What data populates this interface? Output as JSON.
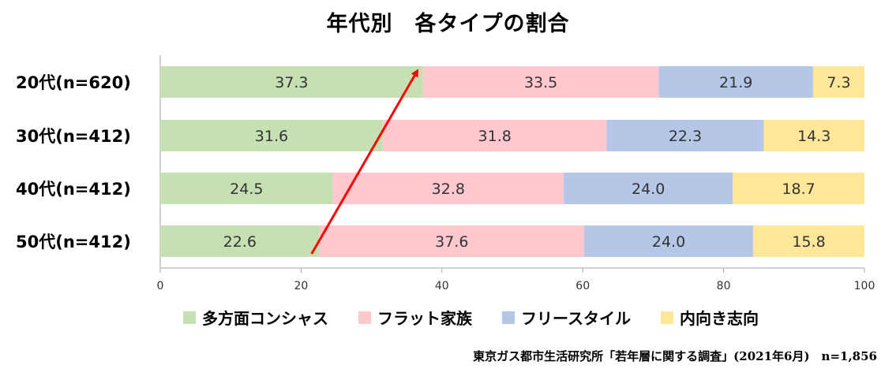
{
  "chart_data": {
    "type": "bar",
    "orientation": "horizontal",
    "stacked": true,
    "title": "年代別　各タイプの割合",
    "categories": [
      "20代(n=620)",
      "30代(n=412)",
      "40代(n=412)",
      "50代(n=412)"
    ],
    "series": [
      {
        "name": "多方面コンシャス",
        "color": "#c6e0b4",
        "values": [
          37.3,
          31.6,
          24.5,
          22.6
        ],
        "labels": [
          "37.3",
          "31.6",
          "24.5",
          "22.6"
        ]
      },
      {
        "name": "フラット家族",
        "color": "#ffc7ce",
        "values": [
          33.5,
          31.8,
          32.8,
          37.6
        ],
        "labels": [
          "33.5",
          "31.8",
          "32.8",
          "37.6"
        ]
      },
      {
        "name": "フリースタイル",
        "color": "#b4c7e7",
        "values": [
          21.9,
          22.3,
          24.0,
          24.0
        ],
        "labels": [
          "21.9",
          "22.3",
          "24.0",
          "24.0"
        ]
      },
      {
        "name": "内向き志向",
        "color": "#ffe699",
        "values": [
          7.3,
          14.3,
          18.7,
          15.8
        ],
        "labels": [
          "7.3",
          "14.3",
          "18.7",
          "15.8"
        ]
      }
    ],
    "xlim": [
      0,
      100
    ],
    "xticks": [
      "0",
      "20",
      "40",
      "60",
      "80",
      "100"
    ],
    "grid": false,
    "legend": "bottom",
    "annotation": {
      "type": "arrow",
      "color": "#ff0000",
      "from": {
        "category": "50代(n=412)",
        "x": 21.5
      },
      "to": {
        "category": "20代(n=620)",
        "x": 36.5
      }
    }
  },
  "source": "東京ガス都市生活研究所「若年層に関する調査」(2021年6月)　n=1,856"
}
